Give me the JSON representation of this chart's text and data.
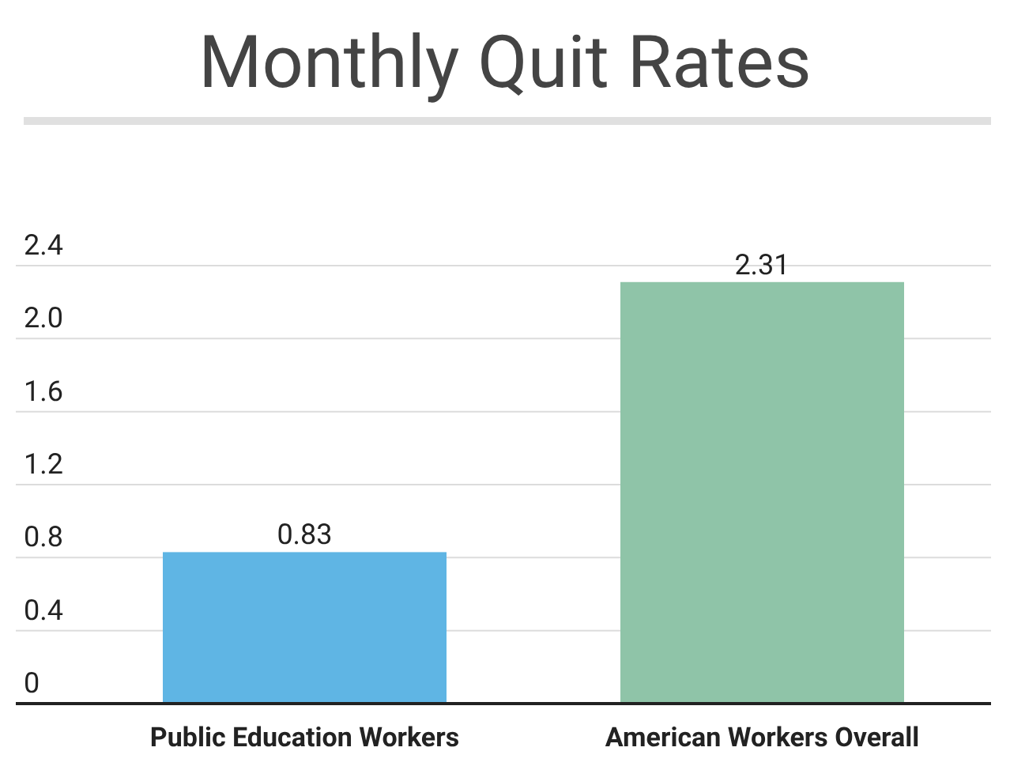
{
  "chart_data": {
    "type": "bar",
    "title": "Monthly Quit Rates",
    "categories": [
      "Public Education Workers",
      "American Workers Overall"
    ],
    "values": [
      0.83,
      2.31
    ],
    "colors": [
      "#5fb5e4",
      "#8fc4a8"
    ],
    "ylim": [
      0,
      2.4
    ],
    "yticks": [
      {
        "value": 0,
        "label": "0"
      },
      {
        "value": 0.4,
        "label": "0.4"
      },
      {
        "value": 0.8,
        "label": "0.8"
      },
      {
        "value": 1.2,
        "label": "1.2"
      },
      {
        "value": 1.6,
        "label": "1.6"
      },
      {
        "value": 2,
        "label": "2.0"
      },
      {
        "value": 2.4,
        "label": "2.4"
      }
    ],
    "grid": "y",
    "data_labels": true
  }
}
